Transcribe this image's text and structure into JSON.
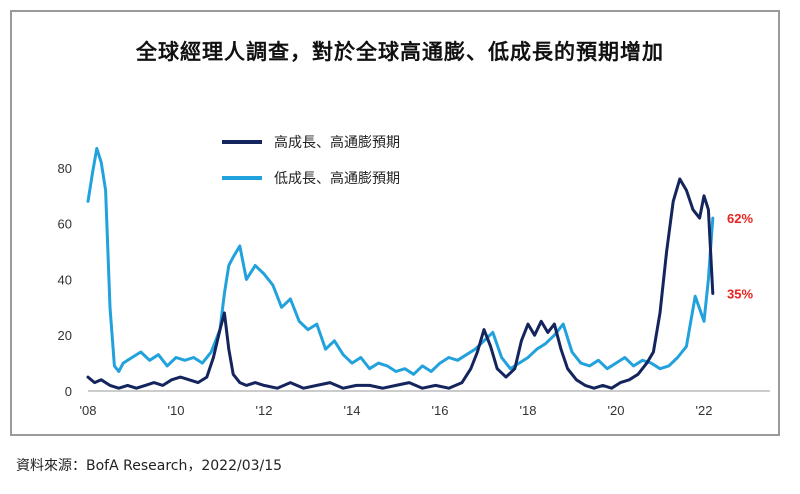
{
  "title": "全球經理人調查，對於全球高通膨、低成長的預期增加",
  "source": "資料來源：BofA Research，2022/03/15",
  "chart_data": {
    "type": "line",
    "title": "全球經理人調查，對於全球高通膨、低成長的預期增加",
    "xlabel": "",
    "ylabel": "",
    "xlim": [
      2008,
      2023.5
    ],
    "ylim": [
      0,
      90
    ],
    "x_ticks": [
      2008,
      2010,
      2012,
      2014,
      2016,
      2018,
      2020,
      2022
    ],
    "x_tick_labels": [
      "'08",
      "'10",
      "'12",
      "'14",
      "'16",
      "'18",
      "'20",
      "'22"
    ],
    "y_ticks": [
      0,
      20,
      40,
      60,
      80
    ],
    "y_tick_labels": [
      "0",
      "20",
      "40",
      "60",
      "80"
    ],
    "grid": false,
    "legend_position": "top-center",
    "series": [
      {
        "name": "高成長、高通膨預期",
        "color": "#14245c",
        "x": [
          2008.0,
          2008.15,
          2008.3,
          2008.5,
          2008.7,
          2008.9,
          2009.1,
          2009.3,
          2009.5,
          2009.7,
          2009.9,
          2010.1,
          2010.3,
          2010.5,
          2010.7,
          2010.85,
          2011.0,
          2011.1,
          2011.2,
          2011.3,
          2011.45,
          2011.6,
          2011.8,
          2012.0,
          2012.3,
          2012.6,
          2012.9,
          2013.2,
          2013.5,
          2013.8,
          2014.1,
          2014.4,
          2014.7,
          2015.0,
          2015.3,
          2015.6,
          2015.9,
          2016.2,
          2016.5,
          2016.7,
          2016.85,
          2017.0,
          2017.15,
          2017.3,
          2017.5,
          2017.7,
          2017.85,
          2018.0,
          2018.15,
          2018.3,
          2018.45,
          2018.6,
          2018.75,
          2018.9,
          2019.1,
          2019.3,
          2019.5,
          2019.7,
          2019.9,
          2020.1,
          2020.3,
          2020.5,
          2020.7,
          2020.85,
          2021.0,
          2021.15,
          2021.3,
          2021.45,
          2021.6,
          2021.75,
          2021.9,
          2022.0,
          2022.1,
          2022.2
        ],
        "values": [
          5,
          3,
          4,
          2,
          1,
          2,
          1,
          2,
          3,
          2,
          4,
          5,
          4,
          3,
          5,
          12,
          22,
          28,
          15,
          6,
          3,
          2,
          3,
          2,
          1,
          3,
          1,
          2,
          3,
          1,
          2,
          2,
          1,
          2,
          3,
          1,
          2,
          1,
          3,
          8,
          14,
          22,
          16,
          8,
          5,
          8,
          18,
          24,
          20,
          25,
          21,
          24,
          15,
          8,
          4,
          2,
          1,
          2,
          1,
          3,
          4,
          6,
          10,
          14,
          28,
          50,
          68,
          76,
          72,
          65,
          62,
          70,
          65,
          35
        ],
        "end_label": "35%"
      },
      {
        "name": "低成長、高通膨預期",
        "color": "#22a2dc",
        "x": [
          2008.0,
          2008.1,
          2008.2,
          2008.3,
          2008.4,
          2008.5,
          2008.6,
          2008.7,
          2008.8,
          2009.0,
          2009.2,
          2009.4,
          2009.6,
          2009.8,
          2010.0,
          2010.2,
          2010.4,
          2010.6,
          2010.8,
          2011.0,
          2011.1,
          2011.2,
          2011.3,
          2011.45,
          2011.6,
          2011.8,
          2012.0,
          2012.2,
          2012.4,
          2012.6,
          2012.8,
          2013.0,
          2013.2,
          2013.4,
          2013.6,
          2013.8,
          2014.0,
          2014.2,
          2014.4,
          2014.6,
          2014.8,
          2015.0,
          2015.2,
          2015.4,
          2015.6,
          2015.8,
          2016.0,
          2016.2,
          2016.4,
          2016.6,
          2016.8,
          2017.0,
          2017.2,
          2017.4,
          2017.6,
          2017.8,
          2018.0,
          2018.2,
          2018.4,
          2018.6,
          2018.8,
          2019.0,
          2019.2,
          2019.4,
          2019.6,
          2019.8,
          2020.0,
          2020.2,
          2020.4,
          2020.6,
          2020.8,
          2021.0,
          2021.2,
          2021.4,
          2021.6,
          2021.8,
          2022.0,
          2022.1,
          2022.2
        ],
        "values": [
          68,
          78,
          87,
          82,
          72,
          30,
          9,
          7,
          10,
          12,
          14,
          11,
          13,
          9,
          12,
          11,
          12,
          10,
          14,
          22,
          35,
          45,
          48,
          52,
          40,
          45,
          42,
          38,
          30,
          33,
          25,
          22,
          24,
          15,
          18,
          13,
          10,
          12,
          8,
          10,
          9,
          7,
          8,
          6,
          9,
          7,
          10,
          12,
          11,
          13,
          15,
          18,
          21,
          12,
          8,
          10,
          12,
          15,
          17,
          20,
          24,
          14,
          10,
          9,
          11,
          8,
          10,
          12,
          9,
          11,
          10,
          8,
          9,
          12,
          16,
          34,
          25,
          40,
          62
        ],
        "end_label": "62%"
      }
    ]
  }
}
